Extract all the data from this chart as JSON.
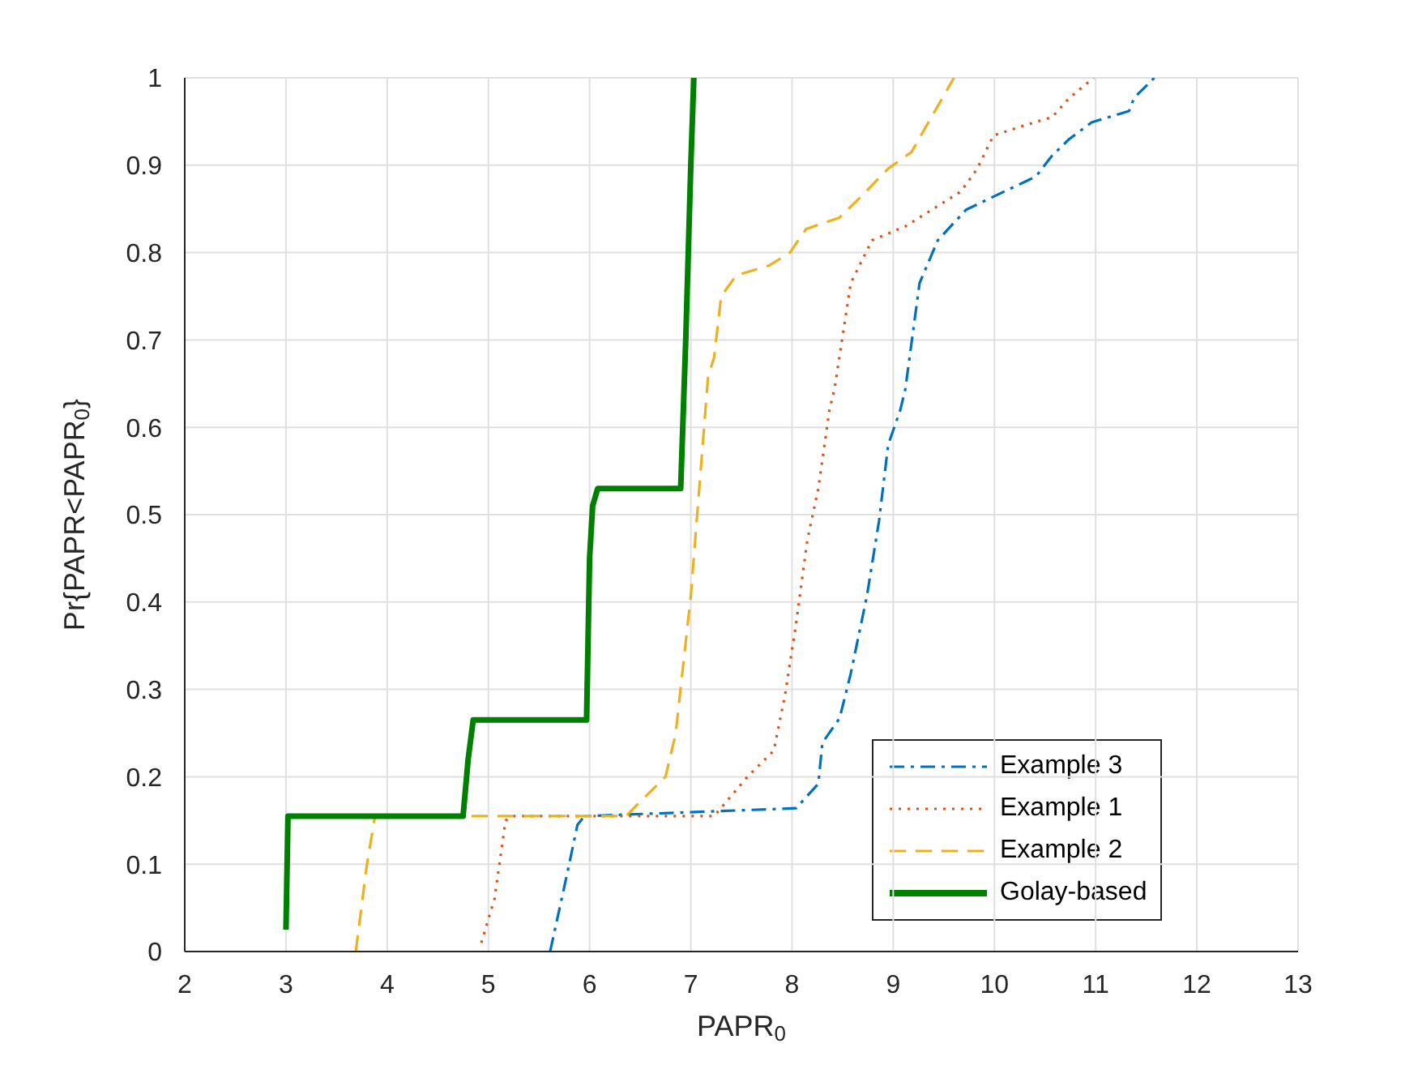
{
  "chart_data": {
    "type": "line",
    "xlabel": "PAPR$_{0}$",
    "ylabel": "Pr{PAPR<PAPR$_{0}$}",
    "xlim": [
      2,
      13
    ],
    "xticks": [
      2,
      3,
      4,
      5,
      6,
      7,
      8,
      9,
      10,
      11,
      12,
      13
    ],
    "ylim": [
      0,
      1
    ],
    "yticks": [
      0,
      0.1,
      0.2,
      0.3,
      0.4,
      0.5,
      0.6,
      0.7,
      0.8,
      0.9,
      1
    ],
    "grid": true,
    "legend": "bottom right",
    "series": [
      {
        "name": "Example 3",
        "color": "#0072bd",
        "line_style": "dashdot",
        "x": [
          5.61,
          5.78,
          5.88,
          5.95,
          8.04,
          8.26,
          8.3,
          8.47,
          8.58,
          8.74,
          8.86,
          8.95,
          9.07,
          9.12,
          9.26,
          9.44,
          9.72,
          9.99,
          10.41,
          10.57,
          10.74,
          10.96,
          11.33,
          11.38,
          11.58
        ],
        "values": [
          0,
          0.09,
          0.145,
          0.155,
          0.164,
          0.192,
          0.239,
          0.267,
          0.318,
          0.407,
          0.493,
          0.58,
          0.62,
          0.644,
          0.765,
          0.814,
          0.849,
          0.864,
          0.887,
          0.911,
          0.93,
          0.949,
          0.962,
          0.977,
          1
        ]
      },
      {
        "name": "Example 1",
        "color": "#d95319",
        "line_style": "dotted",
        "x": [
          4.93,
          5.06,
          5.17,
          5.25,
          7.23,
          7.56,
          7.82,
          7.93,
          8.04,
          8.15,
          8.26,
          8.37,
          8.42,
          8.58,
          8.79,
          9.12,
          9.34,
          9.67,
          9.83,
          9.99,
          10.31,
          10.57,
          10.74,
          10.98
        ],
        "values": [
          0.01,
          0.06,
          0.15,
          0.155,
          0.155,
          0.2,
          0.23,
          0.293,
          0.375,
          0.47,
          0.53,
          0.62,
          0.644,
          0.765,
          0.814,
          0.83,
          0.846,
          0.87,
          0.896,
          0.934,
          0.946,
          0.955,
          0.977,
          1
        ]
      },
      {
        "name": "Example 2",
        "color": "#edb120",
        "line_style": "dashed",
        "x": [
          3.69,
          3.8,
          3.88,
          6.36,
          6.47,
          6.75,
          6.85,
          7.0,
          7.17,
          7.23,
          7.3,
          7.45,
          7.77,
          7.98,
          8.14,
          8.47,
          8.69,
          8.95,
          9.18,
          9.6
        ],
        "values": [
          0,
          0.1,
          0.155,
          0.155,
          0.168,
          0.2,
          0.249,
          0.407,
          0.657,
          0.68,
          0.75,
          0.774,
          0.785,
          0.8,
          0.827,
          0.84,
          0.865,
          0.896,
          0.915,
          1
        ]
      },
      {
        "name": "Golay-based",
        "color": "#008000",
        "line_style": "solid",
        "x": [
          3,
          3.02,
          4.75,
          4.8,
          4.85,
          5.97,
          6.0,
          6.03,
          6.08,
          6.9,
          6.95,
          7.0,
          7.03
        ],
        "values": [
          0.025,
          0.155,
          0.155,
          0.22,
          0.265,
          0.265,
          0.45,
          0.51,
          0.53,
          0.53,
          0.7,
          0.9,
          1
        ]
      }
    ]
  }
}
